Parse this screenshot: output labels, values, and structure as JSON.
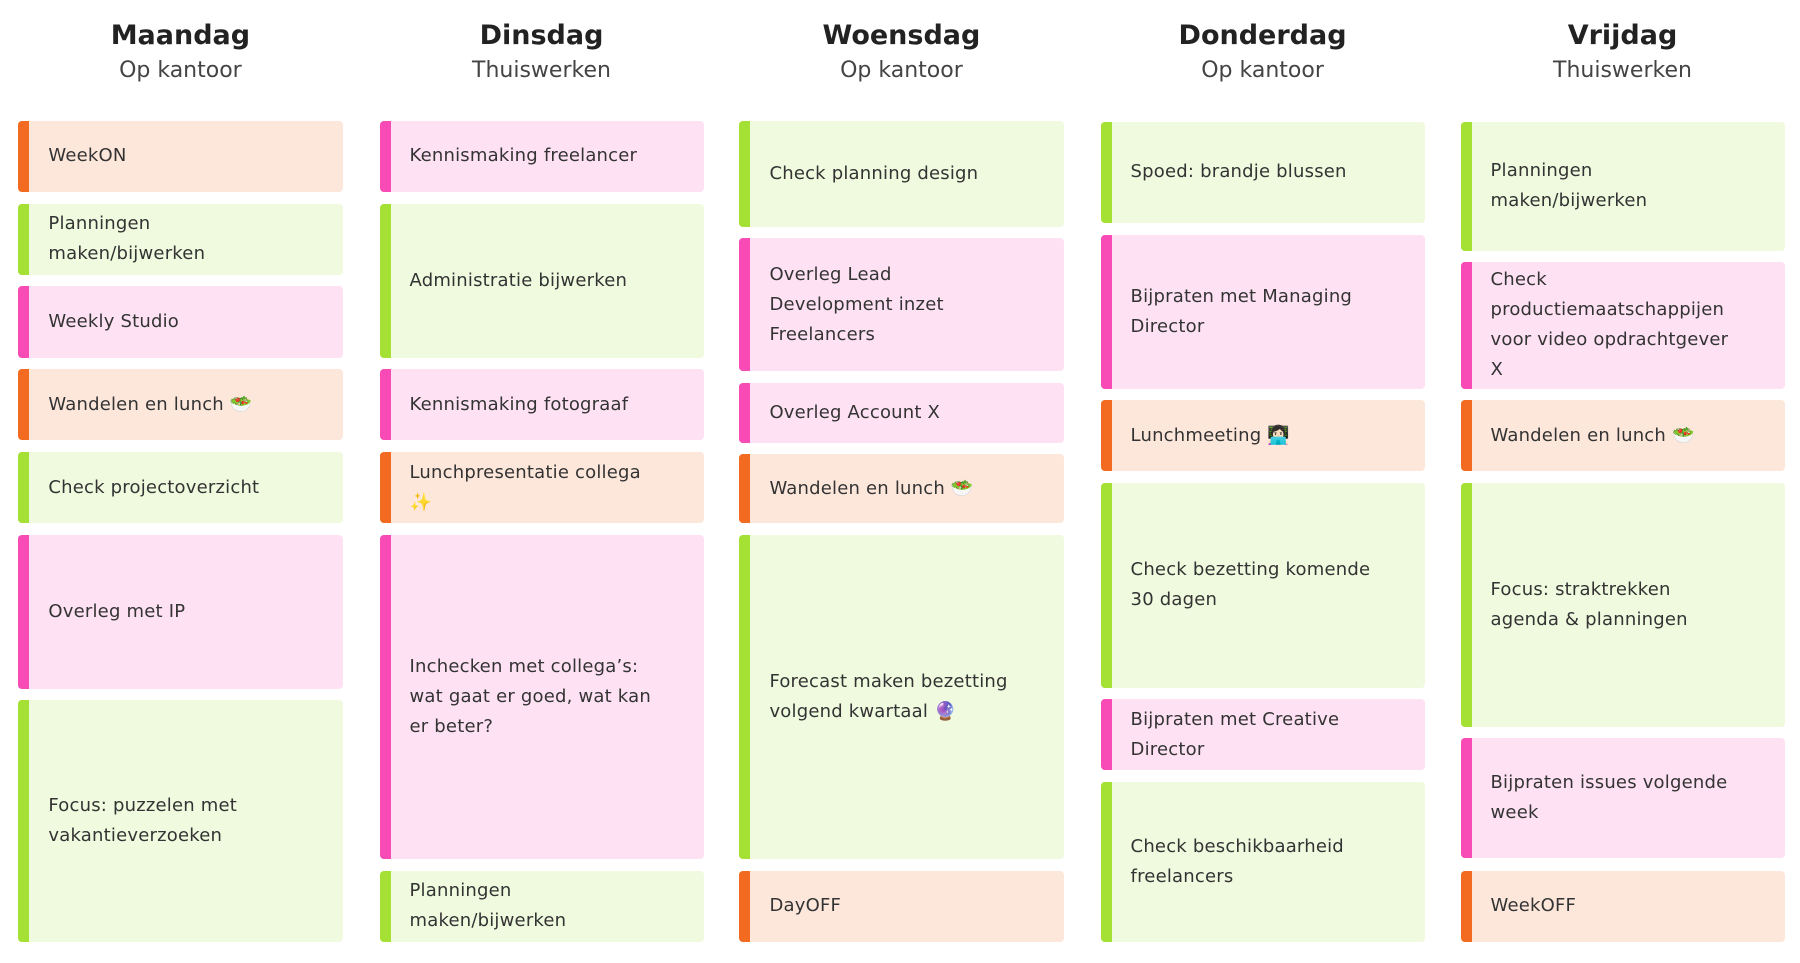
{
  "columns": [
    {
      "day": "Maandag",
      "subtitle": "Op kantoor",
      "cards": [
        {
          "text": "WeekON",
          "color": "#f36b21"
        },
        {
          "text": "Planningen maken/bijwerken",
          "color": "#a4e134"
        },
        {
          "text": "Weekly Studio",
          "color": "#f84bb5"
        },
        {
          "text": "Wandelen en lunch 🥗",
          "color": "#f36b21"
        },
        {
          "text": "Check projectoverzicht",
          "color": "#a4e134"
        },
        {
          "text": "Overleg met IP",
          "color": "#f84bb5"
        },
        {
          "text": "Focus: puzzelen met vakantieverzoeken",
          "color": "#a4e134"
        }
      ]
    },
    {
      "day": "Dinsdag",
      "subtitle": "Thuiswerken",
      "cards": [
        {
          "text": "Kennismaking freelancer",
          "color": "#f84bb5"
        },
        {
          "text": "Administratie bijwerken",
          "color": "#a4e134"
        },
        {
          "text": "Kennismaking fotograaf",
          "color": "#f84bb5"
        },
        {
          "text": "Lunchpresentatie collega ✨",
          "color": "#f36b21"
        },
        {
          "text": "Inchecken met collega’s: wat gaat er goed, wat kan er beter?",
          "color": "#f84bb5"
        },
        {
          "text": "Planningen maken/bijwerken",
          "color": "#a4e134"
        }
      ]
    },
    {
      "day": "Woensdag",
      "subtitle": "Op kantoor",
      "cards": [
        {
          "text": "Check planning design",
          "color": "#a4e134"
        },
        {
          "text": "Overleg Lead Development inzet Freelancers",
          "color": "#f84bb5"
        },
        {
          "text": "Overleg Account X",
          "color": "#f84bb5"
        },
        {
          "text": "Wandelen en lunch 🥗",
          "color": "#f36b21"
        },
        {
          "text": "Forecast maken bezetting volgend kwartaal 🔮",
          "color": "#a4e134"
        },
        {
          "text": "DayOFF",
          "color": "#f36b21"
        }
      ]
    },
    {
      "day": "Donderdag",
      "subtitle": "Op kantoor",
      "cards": [
        {
          "text": "Spoed: brandje blussen",
          "color": "#a4e134"
        },
        {
          "text": "Bijpraten met Managing Director",
          "color": "#f84bb5"
        },
        {
          "text": "Lunchmeeting 👩🏻‍💻",
          "color": "#f36b21"
        },
        {
          "text": "Check bezetting komende 30 dagen",
          "color": "#a4e134"
        },
        {
          "text": "Bijpraten met Creative Director",
          "color": "#f84bb5"
        },
        {
          "text": "Check beschikbaarheid freelancers",
          "color": "#a4e134"
        }
      ]
    },
    {
      "day": "Vrijdag",
      "subtitle": "Thuiswerken",
      "cards": [
        {
          "text": "Planningen maken/bijwerken",
          "color": "#a4e134"
        },
        {
          "text": "Check productiemaatschappijen voor video opdrachtgever X",
          "color": "#f84bb5"
        },
        {
          "text": "Wandelen en lunch 🥗",
          "color": "#f36b21"
        },
        {
          "text": "Focus: straktrekken agenda & planningen",
          "color": "#a4e134"
        },
        {
          "text": "Bijpraten issues volgende week",
          "color": "#f84bb5"
        },
        {
          "text": "WeekOFF",
          "color": "#f36b21"
        }
      ]
    }
  ]
}
